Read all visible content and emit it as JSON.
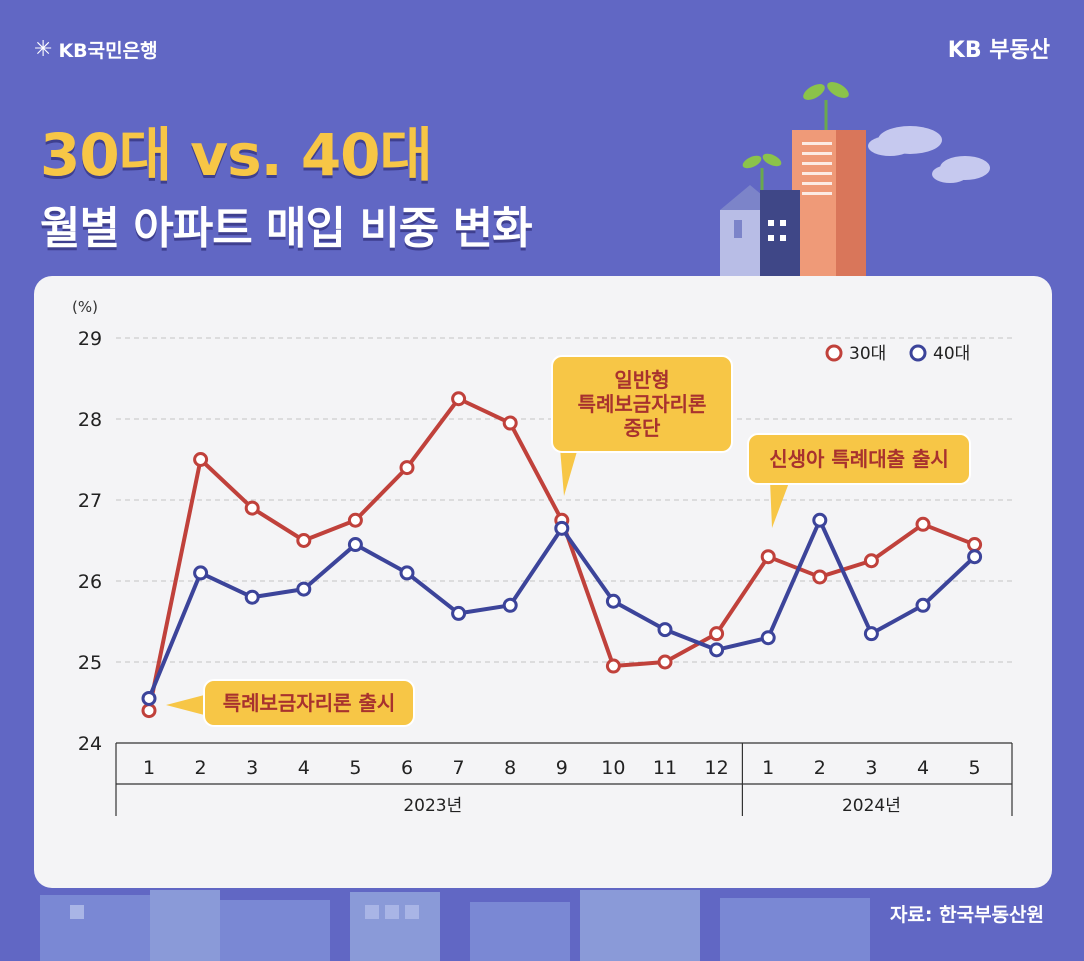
{
  "brand": {
    "bank_logo_text": "KB국민은행",
    "right_label": "KB 부동산"
  },
  "title": {
    "line1": "30대 vs. 40대",
    "line2": "월별 아파트 매입 비중 변화"
  },
  "source": "자료: 한국부동산원",
  "colors": {
    "series_30": "#c0413b",
    "series_40": "#3c449a",
    "callout": "#f7c646",
    "background": "#6167c4"
  },
  "chart_data": {
    "type": "line",
    "ylabel": "(%)",
    "ylim": [
      24,
      29
    ],
    "yticks": [
      24,
      25,
      26,
      27,
      28,
      29
    ],
    "grid": true,
    "legend_position": "top-right",
    "categories": [
      "1",
      "2",
      "3",
      "4",
      "5",
      "6",
      "7",
      "8",
      "9",
      "10",
      "11",
      "12",
      "1",
      "2",
      "3",
      "4",
      "5"
    ],
    "year_groups": [
      {
        "label": "2023년",
        "count": 12
      },
      {
        "label": "2024년",
        "count": 5
      }
    ],
    "series": [
      {
        "name": "30대",
        "values": [
          24.4,
          27.5,
          26.9,
          26.5,
          26.75,
          27.4,
          28.25,
          27.95,
          26.75,
          24.95,
          25.0,
          25.35,
          26.3,
          26.05,
          26.25,
          26.7,
          26.45
        ]
      },
      {
        "name": "40대",
        "values": [
          24.55,
          26.1,
          25.8,
          25.9,
          26.45,
          26.1,
          25.6,
          25.7,
          26.65,
          25.75,
          25.4,
          25.15,
          25.3,
          26.75,
          25.35,
          25.7,
          26.3
        ]
      }
    ],
    "annotations": [
      {
        "text": "특례보금자리론 출시",
        "index": 0
      },
      {
        "text": "일반형\n특례보금자리론\n중단",
        "index": 8
      },
      {
        "text": "신생아 특례대출 출시",
        "index": 12
      }
    ]
  }
}
